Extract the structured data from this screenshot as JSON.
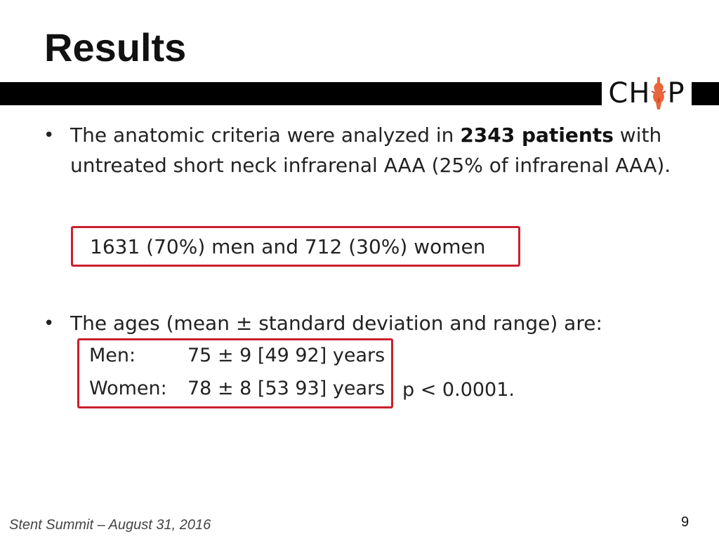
{
  "title": "Results",
  "logo": {
    "prefix": "CH",
    "suffix": "P",
    "icon": "aorta-icon",
    "accent_color": "#e8663a"
  },
  "bullets": [
    {
      "text_before": "The anatomic criteria were analyzed in ",
      "bold": "2343 patients",
      "text_after": " with untreated short neck infrarenal AAA (25% of infrarenal AAA)."
    },
    {
      "text": "The ages (mean ± standard deviation and range) are:"
    }
  ],
  "highlight_box": {
    "text": "1631 (70%) men and 712 (30%) women",
    "border_color": "#c9202e"
  },
  "ages": [
    {
      "label": "Men:",
      "value": "75 ± 9  [49  92] years"
    },
    {
      "label": "Women:",
      "value": "78 ± 8  [53  93] years"
    }
  ],
  "p_value": "p < 0.0001.",
  "footer": "Stent Summit – August 31, 2016",
  "page_number": "9"
}
